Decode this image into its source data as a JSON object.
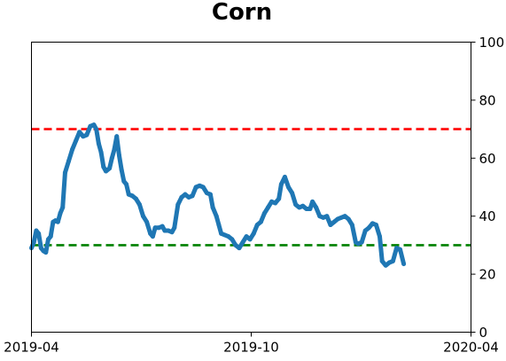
{
  "chart_data": {
    "type": "line",
    "title": "Corn",
    "xlabel": "",
    "ylabel": "",
    "x_range": [
      "2019-04-01",
      "2020-04-01"
    ],
    "ylim": [
      0,
      100
    ],
    "y_axis_side": "right",
    "grid": false,
    "legend": "none",
    "x_ticks": [
      "2019-04",
      "2019-10",
      "2020-04"
    ],
    "y_ticks": [
      0,
      20,
      40,
      60,
      80,
      100
    ],
    "series": [
      {
        "color": "#1f77b4",
        "points": [
          [
            "2019-04-01",
            29
          ],
          [
            "2019-04-03",
            31
          ],
          [
            "2019-04-05",
            35
          ],
          [
            "2019-04-07",
            34
          ],
          [
            "2019-04-09",
            29
          ],
          [
            "2019-04-11",
            28
          ],
          [
            "2019-04-13",
            27.5
          ],
          [
            "2019-04-15",
            32
          ],
          [
            "2019-04-17",
            33
          ],
          [
            "2019-04-19",
            38
          ],
          [
            "2019-04-21",
            38.5
          ],
          [
            "2019-04-23",
            38
          ],
          [
            "2019-04-25",
            41
          ],
          [
            "2019-04-27",
            43
          ],
          [
            "2019-04-29",
            55
          ],
          [
            "2019-05-02",
            59
          ],
          [
            "2019-05-05",
            63
          ],
          [
            "2019-05-08",
            66
          ],
          [
            "2019-05-11",
            69
          ],
          [
            "2019-05-14",
            67.5
          ],
          [
            "2019-05-17",
            68
          ],
          [
            "2019-05-20",
            71
          ],
          [
            "2019-05-23",
            71.5
          ],
          [
            "2019-05-25",
            70
          ],
          [
            "2019-05-27",
            65
          ],
          [
            "2019-05-29",
            62
          ],
          [
            "2019-05-31",
            57
          ],
          [
            "2019-06-02",
            55.5
          ],
          [
            "2019-06-05",
            56.5
          ],
          [
            "2019-06-07",
            60
          ],
          [
            "2019-06-09",
            63
          ],
          [
            "2019-06-11",
            67.5
          ],
          [
            "2019-06-13",
            61
          ],
          [
            "2019-06-15",
            56
          ],
          [
            "2019-06-17",
            52
          ],
          [
            "2019-06-19",
            51
          ],
          [
            "2019-06-21",
            47.5
          ],
          [
            "2019-06-24",
            47
          ],
          [
            "2019-06-27",
            46
          ],
          [
            "2019-06-30",
            44
          ],
          [
            "2019-07-03",
            40
          ],
          [
            "2019-07-06",
            38
          ],
          [
            "2019-07-09",
            34
          ],
          [
            "2019-07-11",
            33
          ],
          [
            "2019-07-13",
            36
          ],
          [
            "2019-07-16",
            36
          ],
          [
            "2019-07-19",
            36.5
          ],
          [
            "2019-07-21",
            35
          ],
          [
            "2019-07-24",
            35
          ],
          [
            "2019-07-27",
            34.5
          ],
          [
            "2019-07-29",
            36
          ],
          [
            "2019-08-01",
            44
          ],
          [
            "2019-08-04",
            46.5
          ],
          [
            "2019-08-07",
            47.5
          ],
          [
            "2019-08-10",
            46.5
          ],
          [
            "2019-08-13",
            47
          ],
          [
            "2019-08-16",
            50
          ],
          [
            "2019-08-19",
            50.5
          ],
          [
            "2019-08-22",
            50
          ],
          [
            "2019-08-25",
            48
          ],
          [
            "2019-08-28",
            47.5
          ],
          [
            "2019-08-30",
            43
          ],
          [
            "2019-09-02",
            40
          ],
          [
            "2019-09-04",
            37
          ],
          [
            "2019-09-06",
            34
          ],
          [
            "2019-09-09",
            33.5
          ],
          [
            "2019-09-12",
            33
          ],
          [
            "2019-09-15",
            32
          ],
          [
            "2019-09-18",
            30
          ],
          [
            "2019-09-21",
            29
          ],
          [
            "2019-09-24",
            31
          ],
          [
            "2019-09-27",
            33
          ],
          [
            "2019-09-30",
            32
          ],
          [
            "2019-10-03",
            34
          ],
          [
            "2019-10-06",
            37
          ],
          [
            "2019-10-09",
            38
          ],
          [
            "2019-10-12",
            41
          ],
          [
            "2019-10-15",
            43
          ],
          [
            "2019-10-18",
            45
          ],
          [
            "2019-10-21",
            44.5
          ],
          [
            "2019-10-24",
            46
          ],
          [
            "2019-10-26",
            51
          ],
          [
            "2019-10-29",
            53.5
          ],
          [
            "2019-11-01",
            50
          ],
          [
            "2019-11-04",
            48
          ],
          [
            "2019-11-07",
            44
          ],
          [
            "2019-11-10",
            43
          ],
          [
            "2019-11-13",
            43.5
          ],
          [
            "2019-11-16",
            42.5
          ],
          [
            "2019-11-19",
            42.5
          ],
          [
            "2019-11-21",
            45
          ],
          [
            "2019-11-24",
            43
          ],
          [
            "2019-11-27",
            40
          ],
          [
            "2019-11-30",
            39.5
          ],
          [
            "2019-12-03",
            40
          ],
          [
            "2019-12-06",
            37
          ],
          [
            "2019-12-09",
            38
          ],
          [
            "2019-12-12",
            39
          ],
          [
            "2019-12-15",
            39.5
          ],
          [
            "2019-12-18",
            40
          ],
          [
            "2019-12-21",
            39
          ],
          [
            "2019-12-24",
            37
          ],
          [
            "2019-12-27",
            31
          ],
          [
            "2019-12-29",
            30.5
          ],
          [
            "2020-01-01",
            31
          ],
          [
            "2020-01-04",
            35
          ],
          [
            "2020-01-07",
            36
          ],
          [
            "2020-01-10",
            37.5
          ],
          [
            "2020-01-13",
            37
          ],
          [
            "2020-01-16",
            33
          ],
          [
            "2020-01-18",
            24.5
          ],
          [
            "2020-01-21",
            23
          ],
          [
            "2020-01-24",
            24
          ],
          [
            "2020-01-27",
            24.5
          ],
          [
            "2020-01-30",
            29
          ],
          [
            "2020-02-02",
            28.5
          ],
          [
            "2020-02-05",
            23.5
          ]
        ]
      }
    ],
    "reference_lines": [
      {
        "y": 70,
        "color": "#ff0000",
        "style": "dashed"
      },
      {
        "y": 30,
        "color": "#008000",
        "style": "dashed"
      }
    ]
  }
}
